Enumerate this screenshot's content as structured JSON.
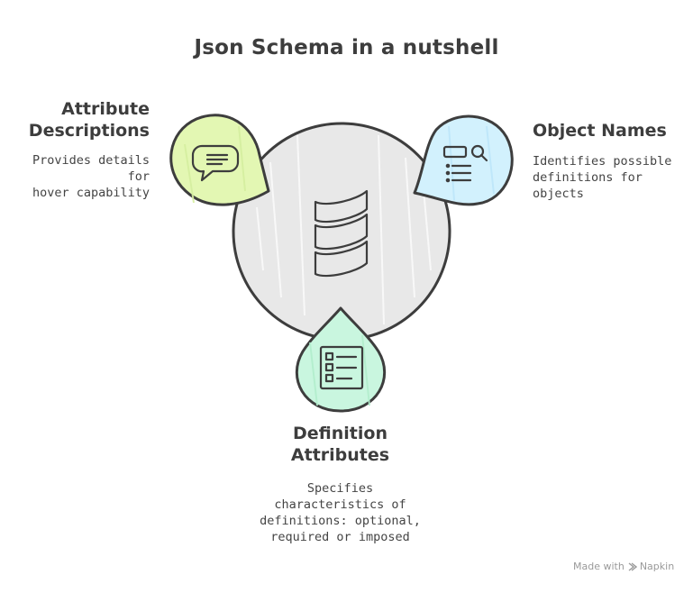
{
  "title": "Json Schema in a nutshell",
  "nodes": [
    {
      "heading": "Attribute\nDescriptions",
      "description": "Provides details for\nhover capability",
      "icon": "speech-bubble-icon",
      "color": "#e3f7b3"
    },
    {
      "heading": "Object Names",
      "description": "Identifies possible\ndefinitions for objects",
      "icon": "search-list-icon",
      "color": "#d2f1fd"
    },
    {
      "heading": "Definition\nAttributes",
      "description": "Specifies\ncharacteristics of\ndefinitions: optional,\nrequired or imposed",
      "icon": "checklist-icon",
      "color": "#c9f6df"
    }
  ],
  "center": {
    "icon": "scala-logo-icon",
    "color": "#e8e8e8"
  },
  "watermark": {
    "prefix": "Made with",
    "brand": "Napkin"
  }
}
